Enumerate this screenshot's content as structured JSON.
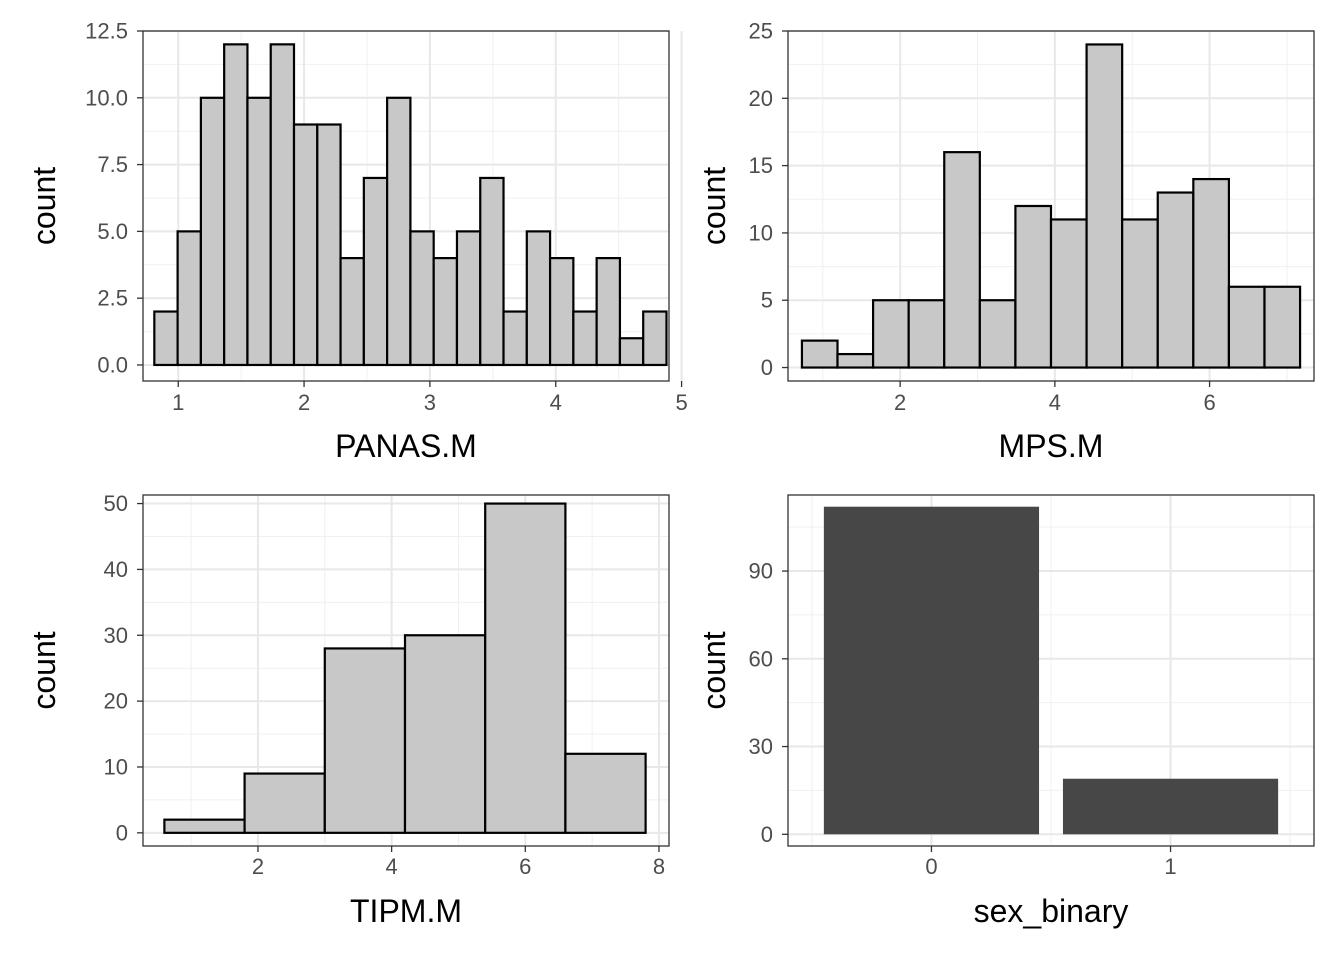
{
  "chart_data": [
    {
      "type": "bar",
      "subtype": "histogram",
      "xlabel": "PANAS.M",
      "ylabel": "count",
      "xlim": [
        0.72,
        4.9
      ],
      "ylim": [
        -0.6,
        12.5
      ],
      "xticks": [
        1,
        2,
        3,
        4,
        5
      ],
      "xtick_labels": [
        "1",
        "2",
        "3",
        "4",
        "5"
      ],
      "yticks": [
        0,
        2.5,
        5,
        7.5,
        10,
        12.5
      ],
      "ytick_labels": [
        "0.0",
        "2.5",
        "5.0",
        "7.5",
        "10.0",
        "12.5"
      ],
      "bin_width": 0.185,
      "bin_start": 0.81,
      "values": [
        2,
        5,
        10,
        12,
        10,
        12,
        9,
        9,
        4,
        7,
        10,
        5,
        4,
        5,
        7,
        2,
        5,
        4,
        2,
        4,
        1,
        2
      ],
      "fill": "#c8c8c8",
      "stroke": "#000000",
      "grid": true
    },
    {
      "type": "bar",
      "subtype": "histogram",
      "xlabel": "MPS.M",
      "ylabel": "count",
      "xlim": [
        0.55,
        7.35
      ],
      "ylim": [
        -1,
        25
      ],
      "xticks": [
        2,
        4,
        6
      ],
      "xtick_labels": [
        "2",
        "4",
        "6"
      ],
      "yticks": [
        0,
        5,
        10,
        15,
        20,
        25
      ],
      "ytick_labels": [
        "0",
        "5",
        "10",
        "15",
        "20",
        "25"
      ],
      "bin_width": 0.46,
      "bin_start": 0.73,
      "values": [
        2,
        1,
        5,
        5,
        16,
        5,
        12,
        11,
        24,
        11,
        13,
        14,
        6,
        6
      ],
      "fill": "#c8c8c8",
      "stroke": "#000000",
      "grid": true
    },
    {
      "type": "bar",
      "subtype": "histogram",
      "xlabel": "TIPM.M",
      "ylabel": "count",
      "xlim": [
        0.28,
        8.15
      ],
      "ylim": [
        -2,
        51.3
      ],
      "xticks": [
        2,
        4,
        6,
        8
      ],
      "xtick_labels": [
        "2",
        "4",
        "6",
        "8"
      ],
      "yticks": [
        0,
        10,
        20,
        30,
        40,
        50
      ],
      "ytick_labels": [
        "0",
        "10",
        "20",
        "30",
        "40",
        "50"
      ],
      "bin_width": 1.2,
      "bin_start": 0.6,
      "values": [
        2,
        9,
        28,
        30,
        50,
        12
      ],
      "fill": "#c8c8c8",
      "stroke": "#000000",
      "grid": true
    },
    {
      "type": "bar",
      "xlabel": "sex_binary",
      "ylabel": "count",
      "categories": [
        "0",
        "1"
      ],
      "values": [
        112,
        19
      ],
      "xlim": [
        -0.6,
        1.6
      ],
      "ylim": [
        -4,
        116
      ],
      "yticks": [
        0,
        30,
        60,
        90
      ],
      "ytick_labels": [
        "0",
        "30",
        "60",
        "90"
      ],
      "fill": "#474747",
      "grid": true
    }
  ]
}
